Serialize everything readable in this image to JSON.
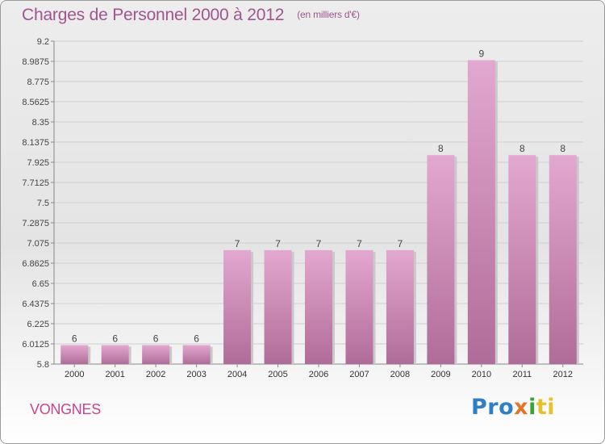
{
  "title": "Charges de Personnel 2000 à 2012",
  "subtitle": "(en milliers d'€)",
  "commune": "VONGNES",
  "logo": {
    "p1": "Pro",
    "p2": "x",
    "p3": "i",
    "p4": "ti"
  },
  "colors": {
    "bar_top": "#e3a8cf",
    "bar_bottom": "#b06c98",
    "title": "#a0558e",
    "commune": "#c2478f"
  },
  "chart_data": {
    "type": "bar",
    "title": "Charges de Personnel 2000 à 2012",
    "categories": [
      "2000",
      "2001",
      "2002",
      "2003",
      "2004",
      "2005",
      "2006",
      "2007",
      "2008",
      "2009",
      "2010",
      "2011",
      "2012"
    ],
    "values": [
      6,
      6,
      6,
      6,
      7,
      7,
      7,
      7,
      7,
      8,
      9,
      8,
      8
    ],
    "bar_heights": [
      6.0,
      6.0,
      6.0,
      6.0,
      7.0,
      7.0,
      7.0,
      7.0,
      7.0,
      8.0,
      9.0,
      8.0,
      8.0
    ],
    "data_labels": [
      "6",
      "6",
      "6",
      "6",
      "7",
      "7",
      "7",
      "7",
      "7",
      "8",
      "9",
      "8",
      "8"
    ],
    "ylim": [
      5.8,
      9.2
    ],
    "yticks": [
      "5.8",
      "6.0125",
      "6.225",
      "6.4375",
      "6.65",
      "6.8625",
      "7.075",
      "7.2875",
      "7.5",
      "7.7125",
      "7.925",
      "8.1375",
      "8.35",
      "8.5625",
      "8.775",
      "8.9875",
      "9.2"
    ],
    "grid": true,
    "legend": "none"
  }
}
